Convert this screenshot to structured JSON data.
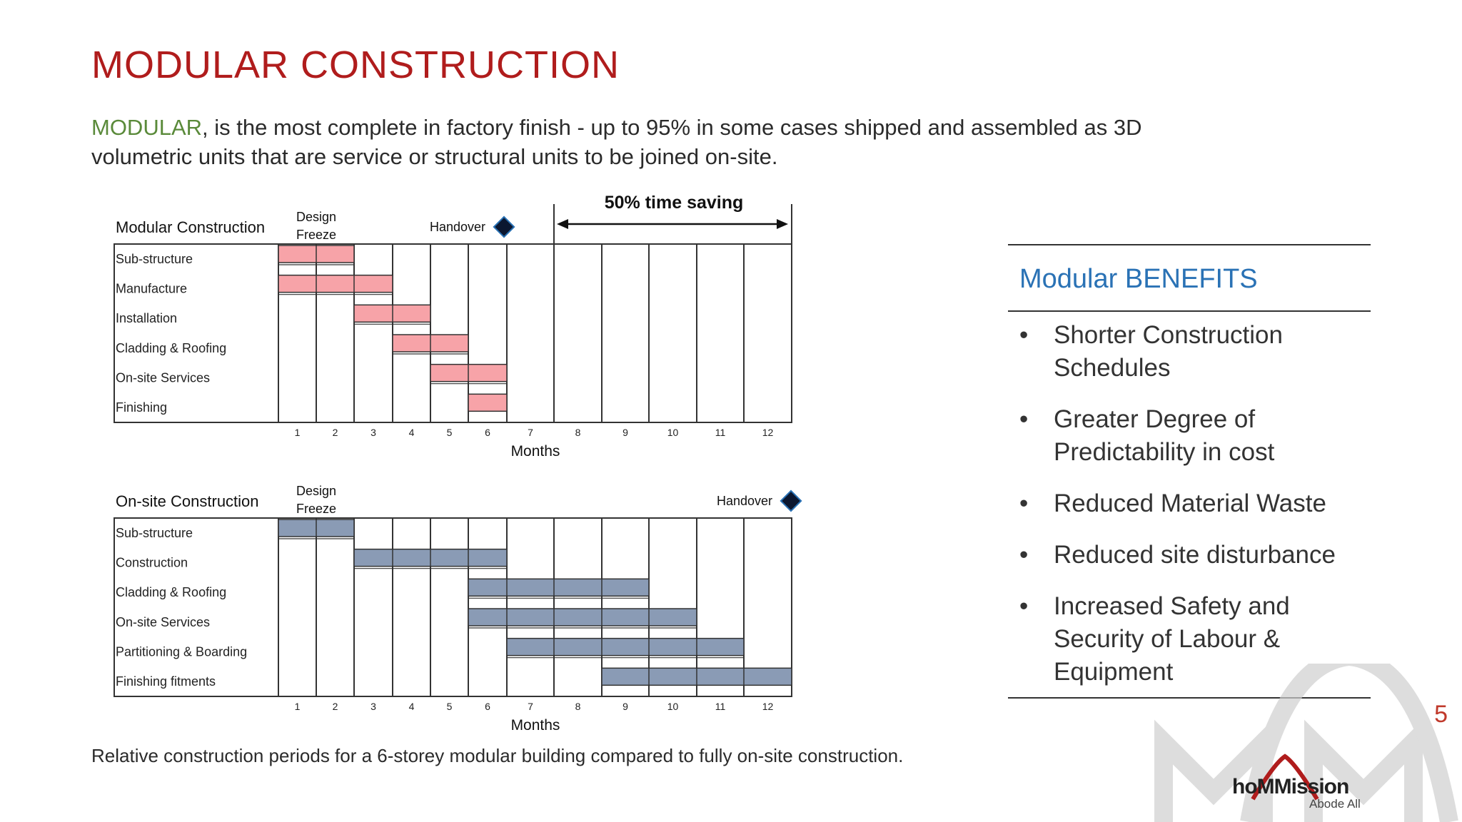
{
  "slide": {
    "title": "MODULAR CONSTRUCTION",
    "intro_keyword": "MODULAR",
    "intro_rest": ", is the most complete in factory finish - up to 95% in some cases shipped and assembled as 3D volumetric units that are service or structural units to be joined on-site.",
    "caption": "Relative construction periods for a 6-storey modular building compared to fully on-site construction.",
    "page_number": "5"
  },
  "benefits": {
    "title": "Modular BENEFITS",
    "bullet": "•",
    "items": [
      "Shorter Construction Schedules",
      "Greater Degree of Predictability in cost",
      "Reduced Material Waste",
      "Reduced site disturbance",
      "Increased Safety and Security of Labour & Equipment"
    ]
  },
  "logo": {
    "name": "hoMMission",
    "tagline": "Abode All"
  },
  "chart_data": [
    {
      "type": "gantt",
      "title": "Modular Construction",
      "design_freeze_label": [
        "Design",
        "Freeze"
      ],
      "handover_label": "Handover",
      "handover_after_month": 6,
      "time_saving_label": "50% time saving",
      "xlabel": "Months",
      "months": [
        1,
        2,
        3,
        4,
        5,
        6,
        7,
        8,
        9,
        10,
        11,
        12
      ],
      "bar_color": "#f7a3a8",
      "tasks": [
        {
          "name": "Sub-structure",
          "start": 1,
          "end": 2
        },
        {
          "name": "Manufacture",
          "start": 1,
          "end": 3
        },
        {
          "name": "Installation",
          "start": 3,
          "end": 4
        },
        {
          "name": "Cladding & Roofing",
          "start": 4,
          "end": 5
        },
        {
          "name": "On-site Services",
          "start": 5,
          "end": 6
        },
        {
          "name": "Finishing",
          "start": 6,
          "end": 6
        }
      ]
    },
    {
      "type": "gantt",
      "title": "On-site Construction",
      "design_freeze_label": [
        "Design",
        "Freeze"
      ],
      "handover_label": "Handover",
      "handover_after_month": 12,
      "xlabel": "Months",
      "months": [
        1,
        2,
        3,
        4,
        5,
        6,
        7,
        8,
        9,
        10,
        11,
        12
      ],
      "bar_color": "#8a9bb5",
      "tasks": [
        {
          "name": "Sub-structure",
          "start": 1,
          "end": 2
        },
        {
          "name": "Construction",
          "start": 3,
          "end": 6
        },
        {
          "name": "Cladding & Roofing",
          "start": 6,
          "end": 9
        },
        {
          "name": "On-site Services",
          "start": 6,
          "end": 10
        },
        {
          "name": "Partitioning & Boarding",
          "start": 7,
          "end": 11
        },
        {
          "name": "Finishing fitments",
          "start": 9,
          "end": 12
        }
      ]
    }
  ]
}
